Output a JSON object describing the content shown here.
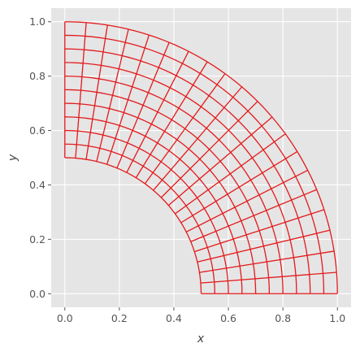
{
  "chart_data": {
    "type": "line",
    "title": "",
    "xlabel": "x",
    "ylabel": "y",
    "xlim": [
      -0.05,
      1.05
    ],
    "ylim": [
      -0.05,
      1.05
    ],
    "xticks": [
      0.0,
      0.2,
      0.4,
      0.6,
      0.8,
      1.0
    ],
    "yticks": [
      0.0,
      0.2,
      0.4,
      0.6,
      0.8,
      1.0
    ],
    "xtick_labels": [
      "0.0",
      "0.2",
      "0.4",
      "0.6",
      "0.8",
      "1.0"
    ],
    "ytick_labels": [
      "0.0",
      "0.2",
      "0.4",
      "0.6",
      "0.8",
      "1.0"
    ],
    "grid": true,
    "style": "ggplot",
    "mesh": {
      "shape": "quarter-annulus",
      "inner_radius": 0.5,
      "outer_radius": 1.0,
      "theta_range_deg": [
        0,
        90
      ],
      "radial_divisions": 10,
      "angular_divisions": 20
    }
  },
  "colors": {
    "mesh_line": "#e41a1c",
    "plot_background": "#e5e5e5",
    "grid": "#ffffff",
    "text": "#555555"
  }
}
